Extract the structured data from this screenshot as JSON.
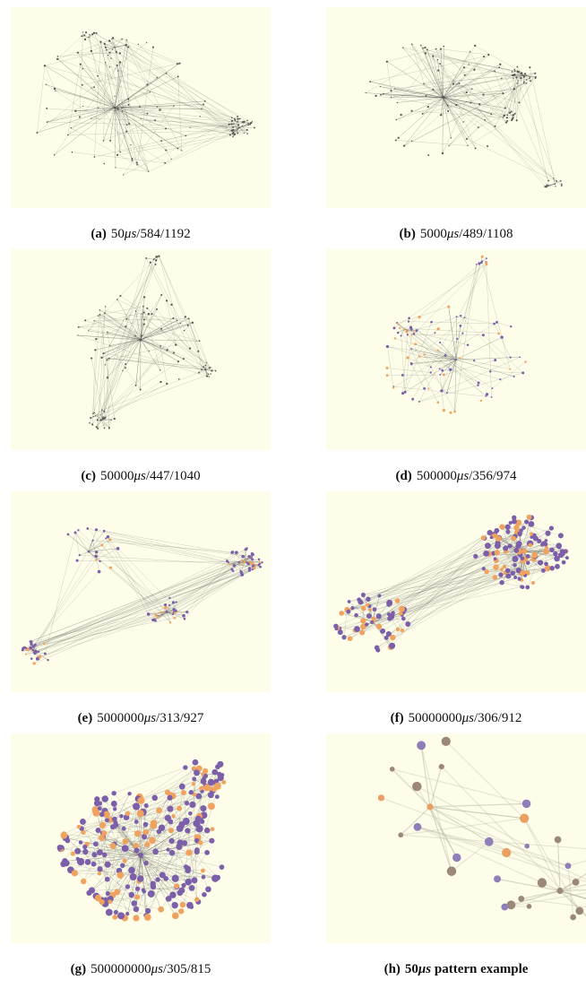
{
  "panels": [
    {
      "label": "(a)",
      "value": "50",
      "unit": "μs",
      "rest": "/584/1192"
    },
    {
      "label": "(b)",
      "value": "5000",
      "unit": "μs",
      "rest": "/489/1108"
    },
    {
      "label": "(c)",
      "value": "50000",
      "unit": "μs",
      "rest": "/447/1040"
    },
    {
      "label": "(d)",
      "value": "500000",
      "unit": "μs",
      "rest": "/356/974"
    },
    {
      "label": "(e)",
      "value": "5000000",
      "unit": "μs",
      "rest": "/313/927"
    },
    {
      "label": "(f)",
      "value": "50000000",
      "unit": "μs",
      "rest": "/306/912"
    },
    {
      "label": "(g)",
      "value": "500000000",
      "unit": "μs",
      "rest": "/305/815"
    },
    {
      "label": "(h)",
      "value": "50",
      "unit": "μs",
      "rest": " pattern example"
    }
  ]
}
